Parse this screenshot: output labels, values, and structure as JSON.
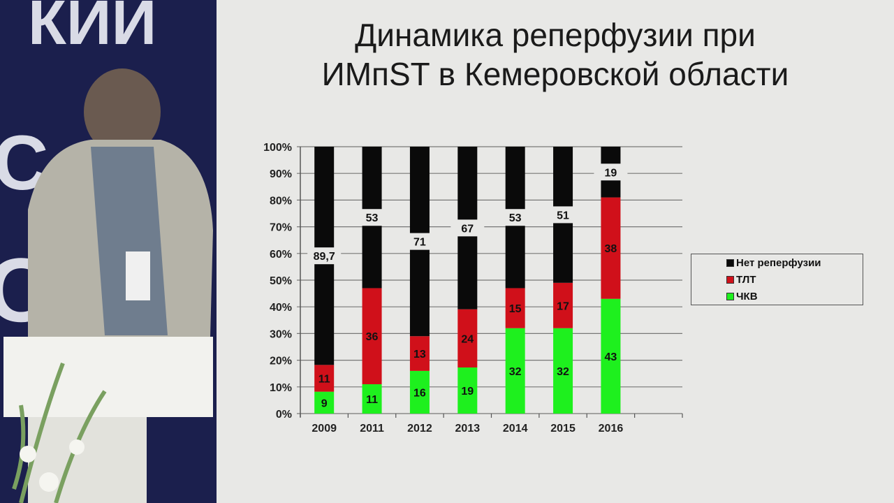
{
  "stage": {
    "wall_text": [
      "КИЙ",
      "С",
      "О"
    ]
  },
  "slide": {
    "title_line1": "Динамика реперфузии при",
    "title_line2": "ИМпST в Кемеровской области"
  },
  "chart_data": {
    "type": "bar",
    "stacked": "100%",
    "title": "Динамика реперфузии при ИМпST в Кемеровской области",
    "categories": [
      "2009",
      "2011",
      "2012",
      "2013",
      "2014",
      "2015",
      "2016"
    ],
    "series": [
      {
        "name": "ЧКВ",
        "color": "#1ef01e",
        "values": [
          9,
          11,
          16,
          19,
          32,
          32,
          43
        ]
      },
      {
        "name": "ТЛТ",
        "color": "#d0101a",
        "values": [
          11,
          36,
          13,
          24,
          15,
          17,
          38
        ]
      },
      {
        "name": "Нет реперфузии",
        "color": "#0a0a0a",
        "values": [
          89.7,
          53,
          71,
          67,
          53,
          51,
          19
        ]
      }
    ],
    "data_labels": [
      [
        "9",
        "11",
        "89,7"
      ],
      [
        "11",
        "36",
        "53"
      ],
      [
        "16",
        "13",
        "71"
      ],
      [
        "19",
        "24",
        "67"
      ],
      [
        "32",
        "15",
        "53"
      ],
      [
        "32",
        "17",
        "51"
      ],
      [
        "43",
        "38",
        "19"
      ]
    ],
    "yticks": [
      "0%",
      "10%",
      "20%",
      "30%",
      "40%",
      "50%",
      "60%",
      "70%",
      "80%",
      "90%",
      "100%"
    ],
    "ylim": [
      0,
      100
    ],
    "grid": true,
    "legend": {
      "placement": "right",
      "entries": [
        "Нет реперфузии",
        "ТЛТ",
        "ЧКВ"
      ]
    }
  }
}
